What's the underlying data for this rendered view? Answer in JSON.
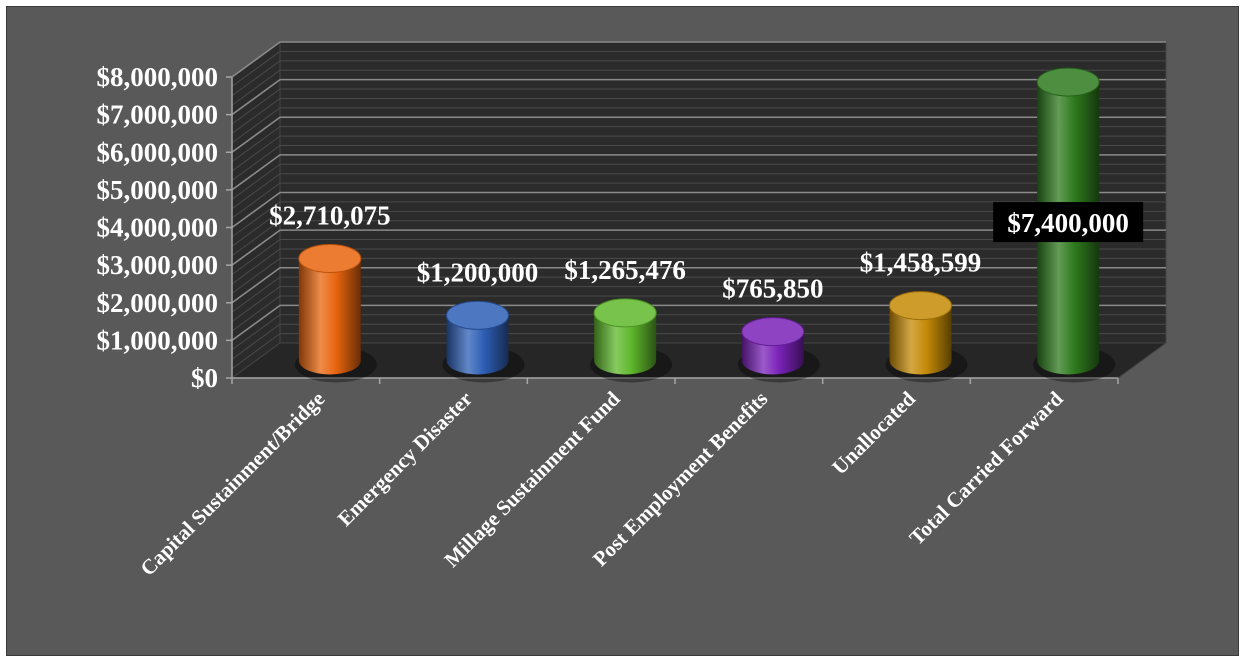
{
  "chart_data": {
    "type": "bar",
    "style": "3d-cylinder",
    "title": "",
    "xlabel": "",
    "ylabel": "",
    "ylim": [
      0,
      8000000
    ],
    "y_ticks": [
      0,
      1000000,
      2000000,
      3000000,
      4000000,
      5000000,
      6000000,
      7000000,
      8000000
    ],
    "y_tick_labels": [
      "$0",
      "$1,000,000",
      "$2,000,000",
      "$3,000,000",
      "$4,000,000",
      "$5,000,000",
      "$6,000,000",
      "$7,000,000",
      "$8,000,000"
    ],
    "grid": true,
    "legend": "none",
    "categories": [
      "Capital Sustainment/Bridge",
      "Emergency Disaster",
      "Millage Sustainment Fund",
      "Post Employment Benefits",
      "Unallocated",
      "Total Carried Forward"
    ],
    "values": [
      2710075,
      1200000,
      1265476,
      765850,
      1458599,
      7400000
    ],
    "data_labels": [
      "$2,710,075",
      "$1,200,000",
      "$1,265,476",
      "$765,850",
      "$1,458,599",
      "$7,400,000"
    ],
    "bar_colors": [
      "#E8650E",
      "#2E5FB5",
      "#5FB82C",
      "#7A22B8",
      "#C48A06",
      "#2E7A1E"
    ],
    "highlighted_label_index": 5
  },
  "colors": {
    "background": "#595959",
    "wall": "#2b2b2b",
    "floor": "#262626",
    "gridline": "#7f7f7f",
    "text": "#ffffff",
    "label_box": "#000000"
  }
}
